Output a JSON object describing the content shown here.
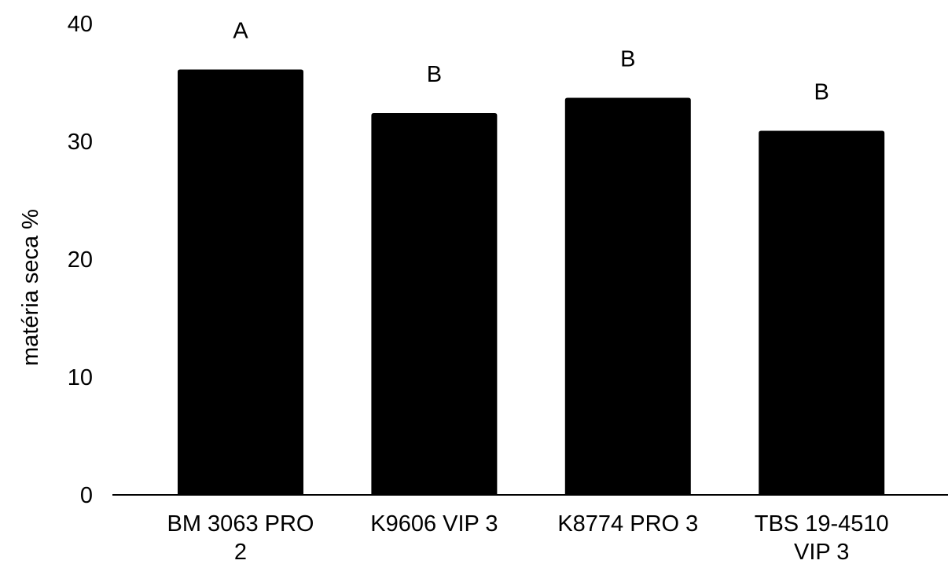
{
  "chart_data": {
    "type": "bar",
    "title": "",
    "xlabel": "",
    "ylabel": "matéria seca %",
    "ylim": [
      0,
      40
    ],
    "yticks": [
      0,
      10,
      20,
      30,
      40
    ],
    "grid": false,
    "legend": "none",
    "bar_color": "#000000",
    "categories": [
      [
        "BM 3063 PRO",
        "2"
      ],
      [
        "K9606 VIP 3"
      ],
      [
        "K8774 PRO 3"
      ],
      [
        "TBS 19-4510",
        "VIP 3"
      ]
    ],
    "values": [
      36.1,
      32.4,
      33.7,
      30.9
    ],
    "annotations": [
      "A",
      "B",
      "B",
      "B"
    ]
  }
}
